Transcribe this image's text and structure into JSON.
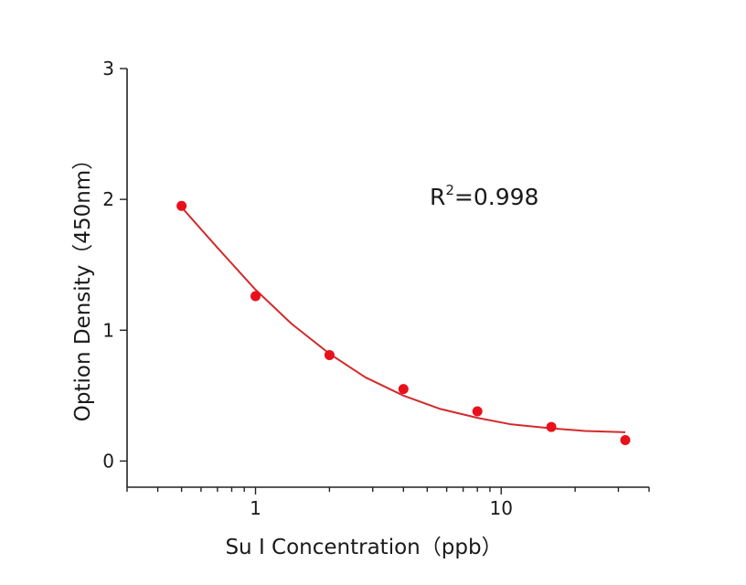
{
  "chart_data": {
    "type": "scatter",
    "title": "",
    "xlabel": "Su I Concentration（ppb）",
    "ylabel": "Option Density（450nm）",
    "x_scale": "log",
    "xlim": [
      0.3,
      40
    ],
    "ylim": [
      -0.2,
      3
    ],
    "x_ticks": [
      1,
      10
    ],
    "x_tick_labels": [
      "1",
      "10"
    ],
    "y_ticks": [
      0,
      1,
      2,
      3
    ],
    "y_tick_labels": [
      "0",
      "1",
      "2",
      "3"
    ],
    "grid": false,
    "legend": "none",
    "series": [
      {
        "kind": "points",
        "color": "#e8111b",
        "x": [
          0.5,
          1,
          2,
          4,
          8,
          16,
          32
        ],
        "y": [
          1.95,
          1.26,
          0.81,
          0.55,
          0.38,
          0.26,
          0.16
        ]
      },
      {
        "kind": "fit-curve",
        "color": "#d42a2a",
        "x": [
          0.5,
          0.7,
          1,
          1.4,
          2,
          2.8,
          4,
          5.6,
          8,
          11,
          16,
          22,
          32
        ],
        "y": [
          1.94,
          1.63,
          1.31,
          1.05,
          0.82,
          0.64,
          0.5,
          0.4,
          0.33,
          0.28,
          0.25,
          0.23,
          0.22
        ]
      }
    ],
    "annotation": {
      "base": "R",
      "sup": "2",
      "rest": "=0.998"
    }
  }
}
